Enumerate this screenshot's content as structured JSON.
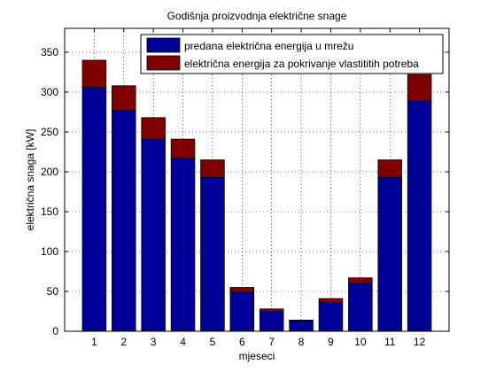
{
  "chart_data": {
    "type": "bar",
    "stacked": true,
    "title": "Godišnja proizvodnja električne snage",
    "xlabel": "mjeseci",
    "ylabel": "električna snaga [kW]",
    "categories": [
      "1",
      "2",
      "3",
      "4",
      "5",
      "6",
      "7",
      "8",
      "9",
      "10",
      "11",
      "12"
    ],
    "series": [
      {
        "name": "predana električna energija u mrežu",
        "color": "#000099",
        "values": [
          306,
          277,
          241,
          217,
          193,
          49,
          25,
          13,
          36,
          60,
          193,
          289
        ]
      },
      {
        "name": "električna energija za pokrivanje vlastititih potreba",
        "color": "#800000",
        "values": [
          34,
          31,
          27,
          24,
          22,
          6,
          3,
          1,
          5,
          7,
          22,
          33
        ]
      }
    ],
    "ylim": [
      0,
      380
    ],
    "yticks": [
      0,
      50,
      100,
      150,
      200,
      250,
      300,
      350
    ],
    "grid": true,
    "legend_position": "top-right"
  }
}
